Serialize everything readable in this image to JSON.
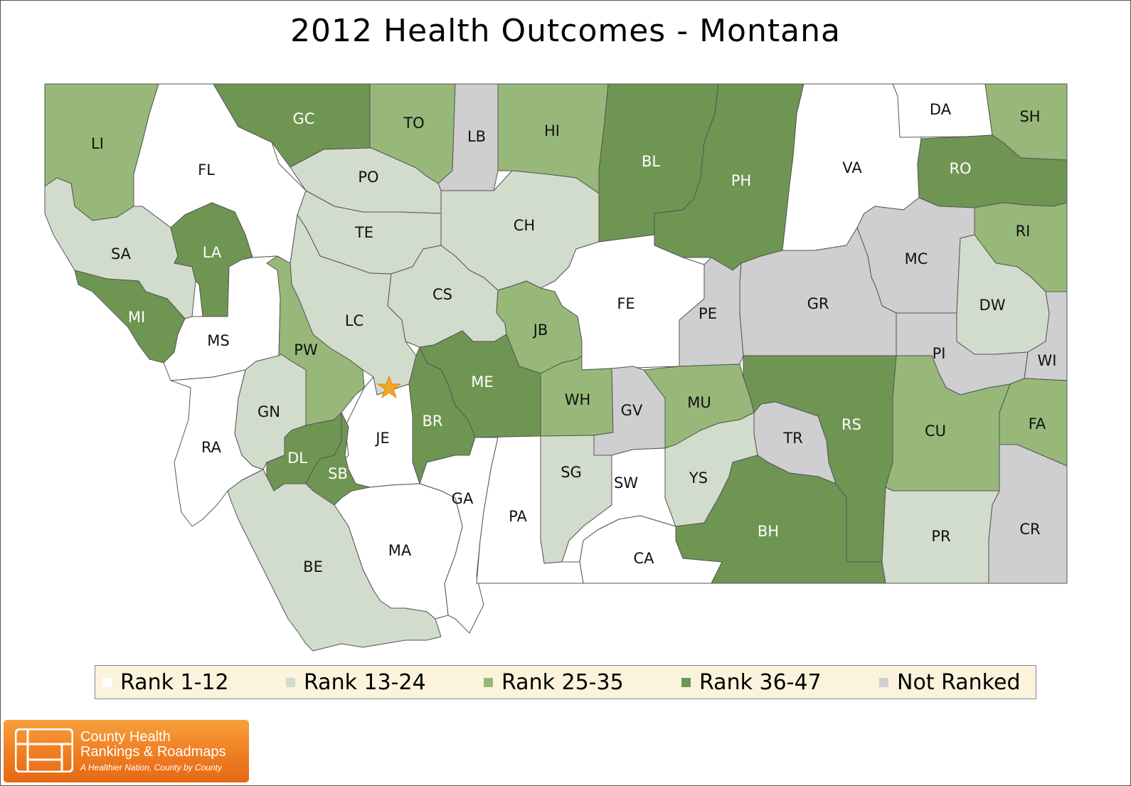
{
  "title": "2012 Health Outcomes - Montana",
  "colors": {
    "rank_1_12": "#ffffff",
    "rank_13_24": "#d2dccc",
    "rank_25_35": "#97b879",
    "rank_36_47": "#6f9553",
    "not_ranked": "#cfcfd1",
    "star": "#f5a623"
  },
  "legend": [
    {
      "label": "Rank 1-12",
      "category": "rank_1_12"
    },
    {
      "label": "Rank 13-24",
      "category": "rank_13_24"
    },
    {
      "label": "Rank 25-35",
      "category": "rank_25_35"
    },
    {
      "label": "Rank 36-47",
      "category": "rank_36_47"
    },
    {
      "label": "Not Ranked",
      "category": "not_ranked"
    }
  ],
  "counties": [
    {
      "code": "LI",
      "category": "rank_25_35"
    },
    {
      "code": "FL",
      "category": "rank_1_12"
    },
    {
      "code": "GC",
      "category": "rank_36_47"
    },
    {
      "code": "TO",
      "category": "rank_25_35"
    },
    {
      "code": "LB",
      "category": "not_ranked"
    },
    {
      "code": "HI",
      "category": "rank_25_35"
    },
    {
      "code": "BL",
      "category": "rank_36_47"
    },
    {
      "code": "PH",
      "category": "rank_36_47"
    },
    {
      "code": "VA",
      "category": "rank_1_12"
    },
    {
      "code": "DA",
      "category": "rank_1_12"
    },
    {
      "code": "SH",
      "category": "rank_25_35"
    },
    {
      "code": "RO",
      "category": "rank_36_47"
    },
    {
      "code": "SA",
      "category": "rank_13_24"
    },
    {
      "code": "LA",
      "category": "rank_36_47"
    },
    {
      "code": "PO",
      "category": "rank_13_24"
    },
    {
      "code": "TE",
      "category": "rank_13_24"
    },
    {
      "code": "CH",
      "category": "rank_13_24"
    },
    {
      "code": "MC",
      "category": "not_ranked"
    },
    {
      "code": "RI",
      "category": "rank_25_35"
    },
    {
      "code": "MI",
      "category": "rank_36_47"
    },
    {
      "code": "MS",
      "category": "rank_1_12"
    },
    {
      "code": "LC",
      "category": "rank_13_24"
    },
    {
      "code": "CS",
      "category": "rank_13_24"
    },
    {
      "code": "FE",
      "category": "rank_1_12"
    },
    {
      "code": "PE",
      "category": "not_ranked"
    },
    {
      "code": "GR",
      "category": "not_ranked"
    },
    {
      "code": "DW",
      "category": "rank_13_24"
    },
    {
      "code": "JB",
      "category": "rank_25_35"
    },
    {
      "code": "PW",
      "category": "rank_25_35"
    },
    {
      "code": "ME",
      "category": "rank_36_47"
    },
    {
      "code": "PI",
      "category": "not_ranked"
    },
    {
      "code": "WI",
      "category": "not_ranked"
    },
    {
      "code": "GN",
      "category": "rank_13_24"
    },
    {
      "code": "BR",
      "category": "rank_36_47"
    },
    {
      "code": "WH",
      "category": "rank_25_35"
    },
    {
      "code": "GV",
      "category": "not_ranked"
    },
    {
      "code": "MU",
      "category": "rank_25_35"
    },
    {
      "code": "RS",
      "category": "rank_36_47"
    },
    {
      "code": "CU",
      "category": "rank_25_35"
    },
    {
      "code": "FA",
      "category": "rank_25_35"
    },
    {
      "code": "RA",
      "category": "rank_1_12"
    },
    {
      "code": "JE",
      "category": "rank_1_12"
    },
    {
      "code": "TR",
      "category": "not_ranked"
    },
    {
      "code": "DL",
      "category": "rank_36_47"
    },
    {
      "code": "SB",
      "category": "rank_36_47"
    },
    {
      "code": "SG",
      "category": "rank_13_24"
    },
    {
      "code": "SW",
      "category": "rank_1_12"
    },
    {
      "code": "YS",
      "category": "rank_13_24"
    },
    {
      "code": "GA",
      "category": "rank_1_12"
    },
    {
      "code": "PA",
      "category": "rank_1_12"
    },
    {
      "code": "BH",
      "category": "rank_36_47"
    },
    {
      "code": "PR",
      "category": "rank_13_24"
    },
    {
      "code": "CR",
      "category": "not_ranked"
    },
    {
      "code": "MA",
      "category": "rank_1_12"
    },
    {
      "code": "CA",
      "category": "rank_1_12"
    },
    {
      "code": "BE",
      "category": "rank_13_24"
    }
  ],
  "logo": {
    "line1": "County Health",
    "line2": "Rankings & Roadmaps",
    "tagline": "A Healthier Nation, County by County"
  }
}
